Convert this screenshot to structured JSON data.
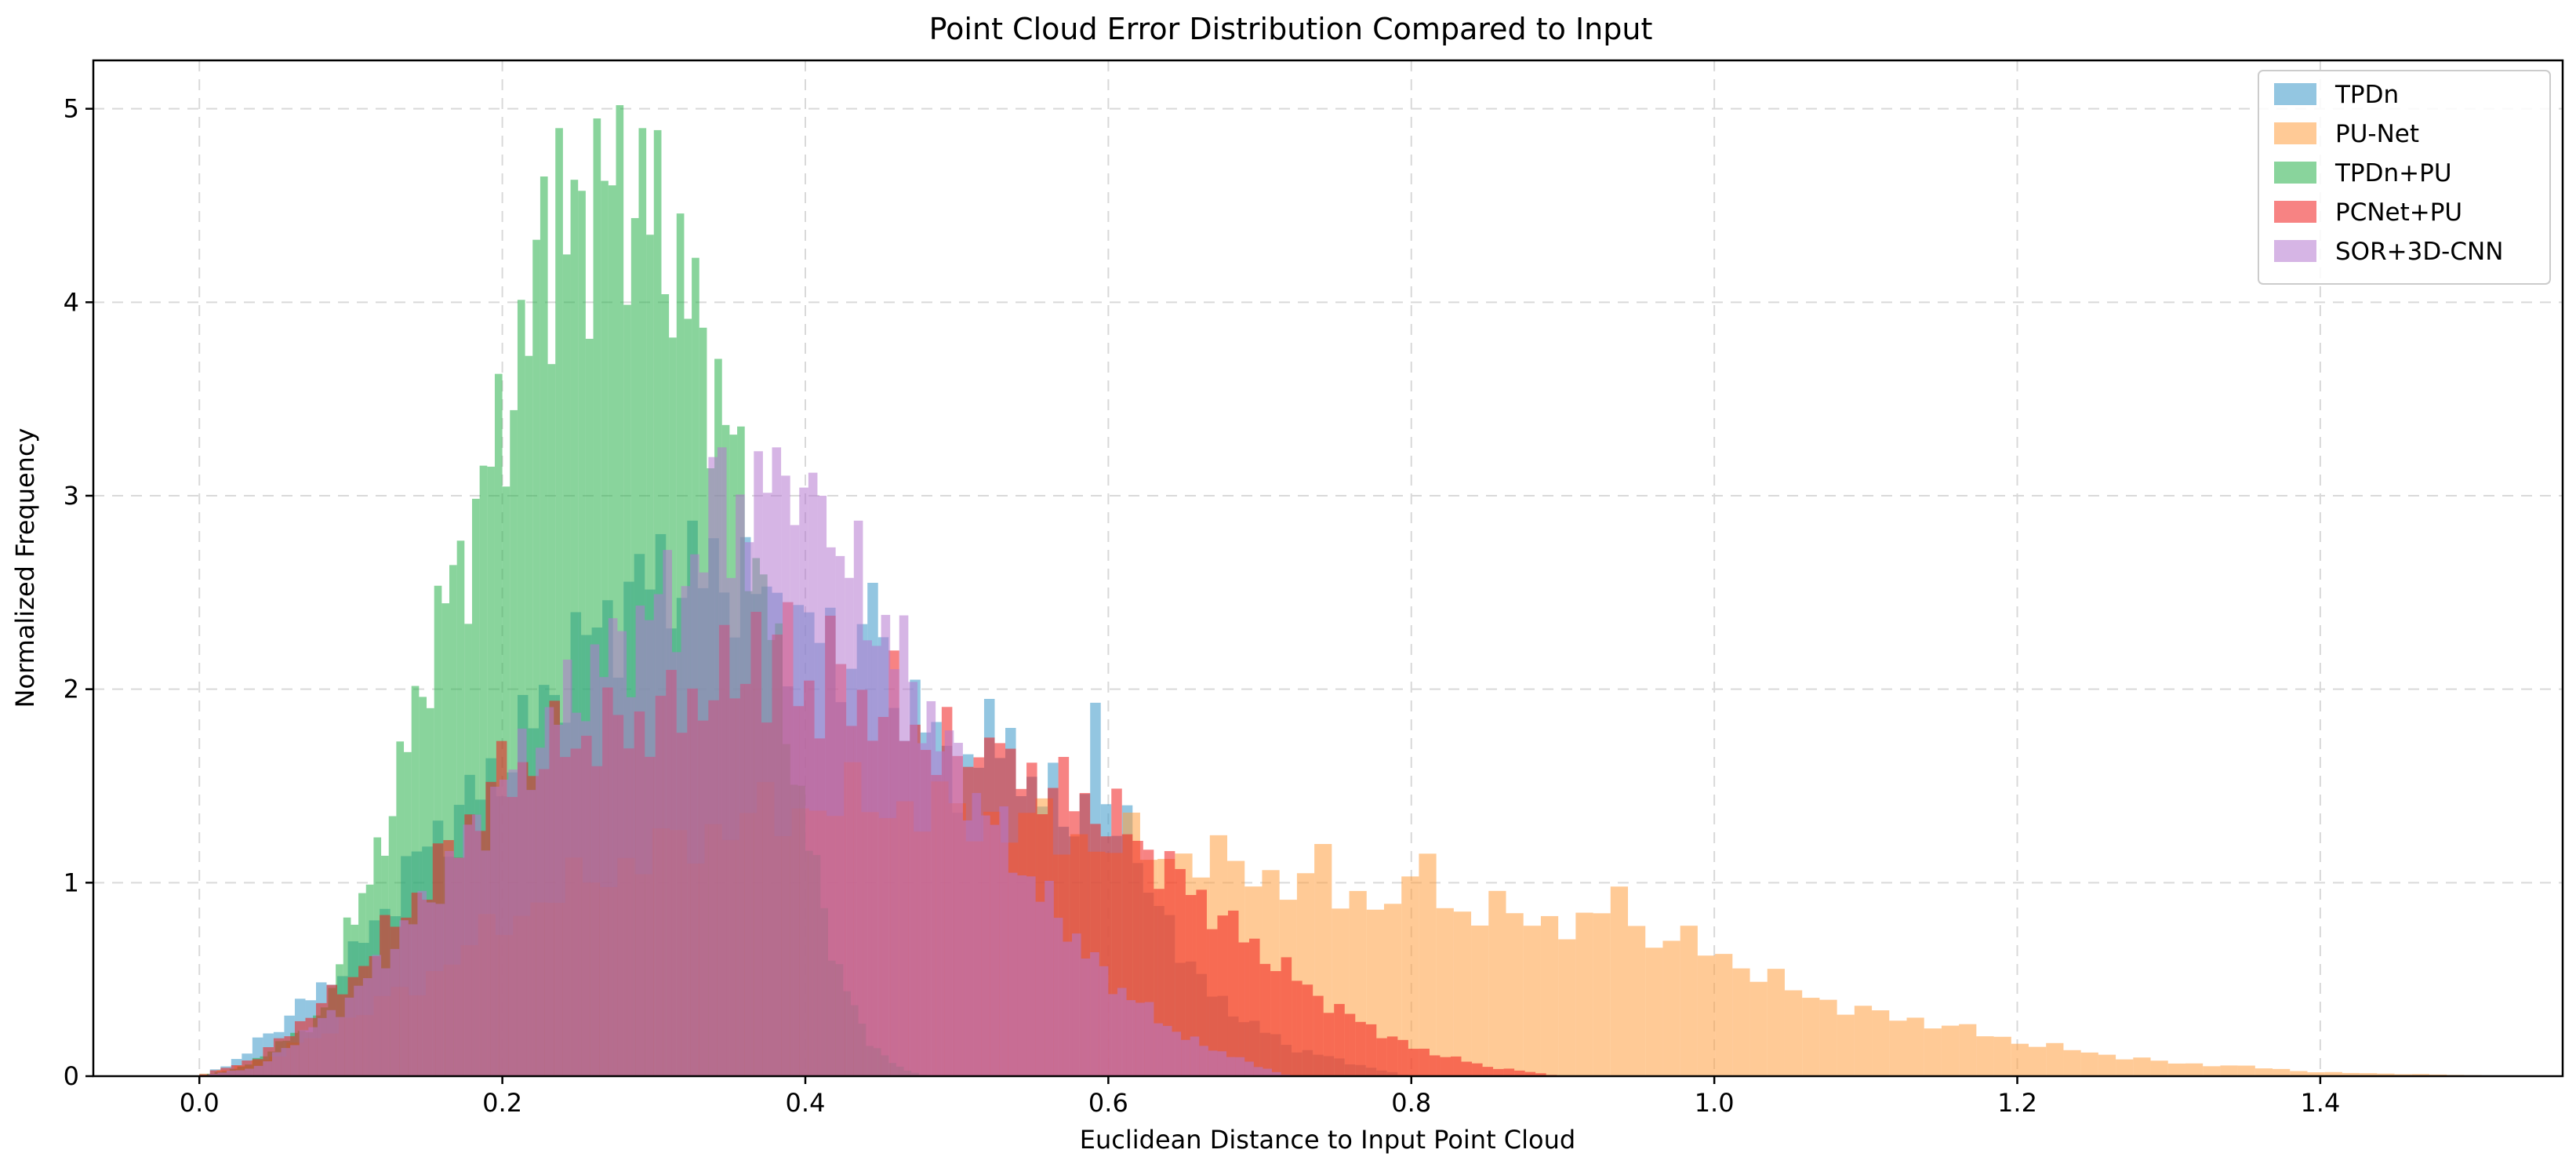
{
  "chart_data": {
    "type": "histogram",
    "title": "Point Cloud Error Distribution Compared to Input",
    "xlabel": "Euclidean Distance to Input Point Cloud",
    "ylabel": "Normalized Frequency",
    "xlim": [
      -0.07,
      1.56
    ],
    "ylim": [
      0,
      5.25
    ],
    "xticks": [
      0.0,
      0.2,
      0.4,
      0.6,
      0.8,
      1.0,
      1.2,
      1.4
    ],
    "xtick_labels": [
      "0.0",
      "0.2",
      "0.4",
      "0.6",
      "0.8",
      "1.0",
      "1.2",
      "1.4"
    ],
    "yticks": [
      0,
      1,
      2,
      3,
      4,
      5
    ],
    "ytick_labels": [
      "0",
      "1",
      "2",
      "3",
      "4",
      "5"
    ],
    "grid": true,
    "legend_position": "top-right",
    "opacity": 0.55,
    "series": [
      {
        "name": "TPDn",
        "color": "#3a97c8",
        "bin_start": 0.0,
        "bin_width": 0.007,
        "profile": [
          [
            0.0,
            0
          ],
          [
            0.03,
            0.1
          ],
          [
            0.1,
            0.6
          ],
          [
            0.15,
            1.2
          ],
          [
            0.2,
            1.6
          ],
          [
            0.25,
            2.2
          ],
          [
            0.3,
            2.6
          ],
          [
            0.35,
            2.6
          ],
          [
            0.4,
            2.3
          ],
          [
            0.45,
            2.1
          ],
          [
            0.5,
            1.6
          ],
          [
            0.55,
            1.45
          ],
          [
            0.6,
            1.3
          ],
          [
            0.63,
            0.9
          ],
          [
            0.67,
            0.4
          ],
          [
            0.72,
            0.15
          ],
          [
            0.78,
            0.03
          ],
          [
            0.8,
            0
          ]
        ],
        "peaks": [
          [
            0.445,
            2.55
          ],
          [
            0.455,
            2.2
          ],
          [
            0.523,
            1.95
          ],
          [
            0.533,
            1.8
          ],
          [
            0.567,
            1.62
          ],
          [
            0.595,
            1.93
          ],
          [
            0.615,
            1.4
          ],
          [
            0.038,
            0.2
          ]
        ]
      },
      {
        "name": "PU-Net",
        "color": "#ff9f40",
        "bin_start": 0.0,
        "bin_width": 0.0115,
        "profile": [
          [
            0.0,
            0
          ],
          [
            0.05,
            0.1
          ],
          [
            0.15,
            0.5
          ],
          [
            0.2,
            0.8
          ],
          [
            0.25,
            1.0
          ],
          [
            0.3,
            1.15
          ],
          [
            0.35,
            1.3
          ],
          [
            0.4,
            1.4
          ],
          [
            0.45,
            1.42
          ],
          [
            0.5,
            1.35
          ],
          [
            0.55,
            1.3
          ],
          [
            0.6,
            1.2
          ],
          [
            0.65,
            1.15
          ],
          [
            0.7,
            1.05
          ],
          [
            0.75,
            0.95
          ],
          [
            0.8,
            0.9
          ],
          [
            0.85,
            0.85
          ],
          [
            0.9,
            0.8
          ],
          [
            0.95,
            0.75
          ],
          [
            1.0,
            0.65
          ],
          [
            1.05,
            0.45
          ],
          [
            1.1,
            0.33
          ],
          [
            1.15,
            0.27
          ],
          [
            1.2,
            0.18
          ],
          [
            1.25,
            0.12
          ],
          [
            1.3,
            0.07
          ],
          [
            1.35,
            0.05
          ],
          [
            1.4,
            0.02
          ],
          [
            1.5,
            0.005
          ],
          [
            1.52,
            0
          ]
        ],
        "peaks": [
          [
            0.685,
            1.1
          ],
          [
            0.743,
            1.2
          ],
          [
            0.81,
            1.15
          ],
          [
            0.94,
            0.98
          ],
          [
            1.2,
            0.14
          ],
          [
            1.22,
            0.12
          ]
        ]
      },
      {
        "name": "TPDn+PU",
        "color": "#28b14a",
        "bin_start": 0.0,
        "bin_width": 0.005,
        "profile": [
          [
            0.0,
            0
          ],
          [
            0.03,
            0.05
          ],
          [
            0.08,
            0.3
          ],
          [
            0.1,
            0.7
          ],
          [
            0.12,
            1.2
          ],
          [
            0.14,
            1.8
          ],
          [
            0.16,
            2.4
          ],
          [
            0.18,
            2.8
          ],
          [
            0.2,
            3.4
          ],
          [
            0.22,
            3.9
          ],
          [
            0.24,
            4.3
          ],
          [
            0.26,
            4.5
          ],
          [
            0.28,
            4.6
          ],
          [
            0.3,
            4.45
          ],
          [
            0.32,
            4.1
          ],
          [
            0.34,
            3.6
          ],
          [
            0.36,
            3.0
          ],
          [
            0.38,
            2.2
          ],
          [
            0.4,
            1.3
          ],
          [
            0.42,
            0.6
          ],
          [
            0.44,
            0.2
          ],
          [
            0.46,
            0.05
          ],
          [
            0.48,
            0
          ]
        ],
        "peaks": [
          [
            0.237,
            4.9
          ],
          [
            0.265,
            4.95
          ],
          [
            0.292,
            4.9
          ],
          [
            0.228,
            4.65
          ],
          [
            0.1,
            0.82
          ]
        ]
      },
      {
        "name": "PCNet+PU",
        "color": "#f01e1e",
        "bin_start": 0.0,
        "bin_width": 0.007,
        "profile": [
          [
            0.0,
            0
          ],
          [
            0.04,
            0.1
          ],
          [
            0.1,
            0.5
          ],
          [
            0.15,
            1.0
          ],
          [
            0.2,
            1.55
          ],
          [
            0.25,
            1.75
          ],
          [
            0.3,
            1.85
          ],
          [
            0.35,
            2.05
          ],
          [
            0.4,
            2.0
          ],
          [
            0.45,
            1.9
          ],
          [
            0.5,
            1.65
          ],
          [
            0.55,
            1.55
          ],
          [
            0.6,
            1.35
          ],
          [
            0.65,
            1.0
          ],
          [
            0.7,
            0.65
          ],
          [
            0.75,
            0.35
          ],
          [
            0.8,
            0.15
          ],
          [
            0.85,
            0.05
          ],
          [
            0.9,
            0
          ]
        ],
        "peaks": [
          [
            0.365,
            2.4
          ],
          [
            0.39,
            2.45
          ],
          [
            0.417,
            2.38
          ],
          [
            0.46,
            2.2
          ],
          [
            0.525,
            1.75
          ],
          [
            0.68,
            0.8
          ]
        ]
      },
      {
        "name": "SOR+3D-CNN",
        "color": "#b478cf",
        "bin_start": 0.0,
        "bin_width": 0.006,
        "profile": [
          [
            0.0,
            0
          ],
          [
            0.04,
            0.05
          ],
          [
            0.1,
            0.4
          ],
          [
            0.15,
            0.9
          ],
          [
            0.2,
            1.5
          ],
          [
            0.25,
            2.0
          ],
          [
            0.3,
            2.4
          ],
          [
            0.35,
            2.8
          ],
          [
            0.38,
            3.0
          ],
          [
            0.4,
            2.9
          ],
          [
            0.43,
            2.6
          ],
          [
            0.46,
            2.2
          ],
          [
            0.5,
            1.6
          ],
          [
            0.55,
            1.0
          ],
          [
            0.6,
            0.5
          ],
          [
            0.65,
            0.2
          ],
          [
            0.7,
            0.05
          ],
          [
            0.72,
            0
          ]
        ],
        "peaks": [
          [
            0.343,
            3.25
          ],
          [
            0.38,
            3.25
          ],
          [
            0.41,
            3.0
          ],
          [
            0.342,
            3.2
          ]
        ]
      }
    ]
  }
}
